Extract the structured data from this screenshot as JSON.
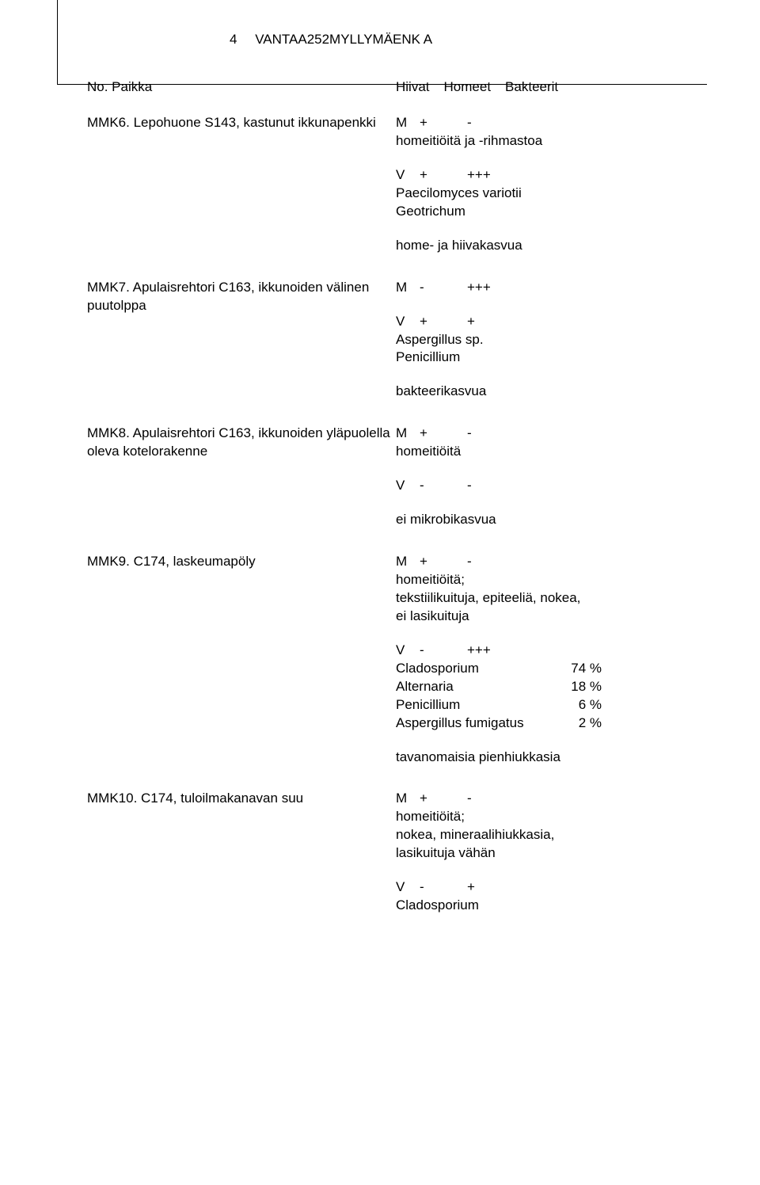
{
  "header": {
    "page_number": "4",
    "doc_code": "VANTAA252MYLLYMÄENK A"
  },
  "table_header": {
    "col_left": "No.   Paikka",
    "col_a": "Hiivat",
    "col_b": "Homeet",
    "col_c": "Bakteerit"
  },
  "rows": [
    {
      "id": "MMK6.",
      "desc": "Lepohuone S143, kastunut ikkunapenkki",
      "m": {
        "c1": "M",
        "c2": "+",
        "c3": "-"
      },
      "m_sub": "homeitiöitä ja -rihmastoa",
      "v": {
        "c1": "V",
        "c2": "+",
        "c3": "+++"
      },
      "v_lines": [
        "Paecilomyces variotii",
        "Geotrichum"
      ],
      "note": "home- ja hiivakasvua"
    },
    {
      "id": "MMK7.",
      "desc": "Apulaisrehtori C163, ikkunoiden välinen puutolppa",
      "m": {
        "c1": "M",
        "c2": "-",
        "c3": "+++"
      },
      "m_sub": "",
      "v": {
        "c1": "V",
        "c2": "+",
        "c3": "+"
      },
      "v_lines": [
        "Aspergillus sp.",
        "Penicillium"
      ],
      "note": "bakteerikasvua"
    },
    {
      "id": "MMK8.",
      "desc": "Apulaisrehtori C163, ikkunoiden yläpuolella oleva kotelorakenne",
      "m": {
        "c1": "M",
        "c2": "+",
        "c3": "-"
      },
      "m_sub": "homeitiöitä",
      "v": {
        "c1": "V",
        "c2": "-",
        "c3": "-"
      },
      "v_lines": [],
      "note": "ei mikrobikasvua"
    },
    {
      "id": "MMK9.",
      "desc": "C174, laskeumapöly",
      "m": {
        "c1": "M",
        "c2": "+",
        "c3": "-"
      },
      "m_sub": "homeitiöitä;",
      "m_extra": [
        "tekstiilikuituja, epiteeliä, nokea,",
        "ei lasikuituja"
      ],
      "v": {
        "c1": "V",
        "c2": "-",
        "c3": "+++"
      },
      "v_pct": [
        {
          "name": "Cladosporium",
          "val": "74 %"
        },
        {
          "name": "Alternaria",
          "val": "18 %"
        },
        {
          "name": "Penicillium",
          "val": "6 %"
        },
        {
          "name": "Aspergillus fumigatus",
          "val": "2 %"
        }
      ],
      "note": "tavanomaisia pienhiukkasia"
    },
    {
      "id": "MMK10.",
      "desc": "C174, tuloilmakanavan suu",
      "m": {
        "c1": "M",
        "c2": "+",
        "c3": "-"
      },
      "m_sub": "homeitiöitä;",
      "m_extra": [
        "nokea, mineraalihiukkasia,",
        "lasikuituja vähän"
      ],
      "v": {
        "c1": "V",
        "c2": "-",
        "c3": "+"
      },
      "v_lines": [
        "Cladosporium"
      ],
      "note": ""
    }
  ]
}
